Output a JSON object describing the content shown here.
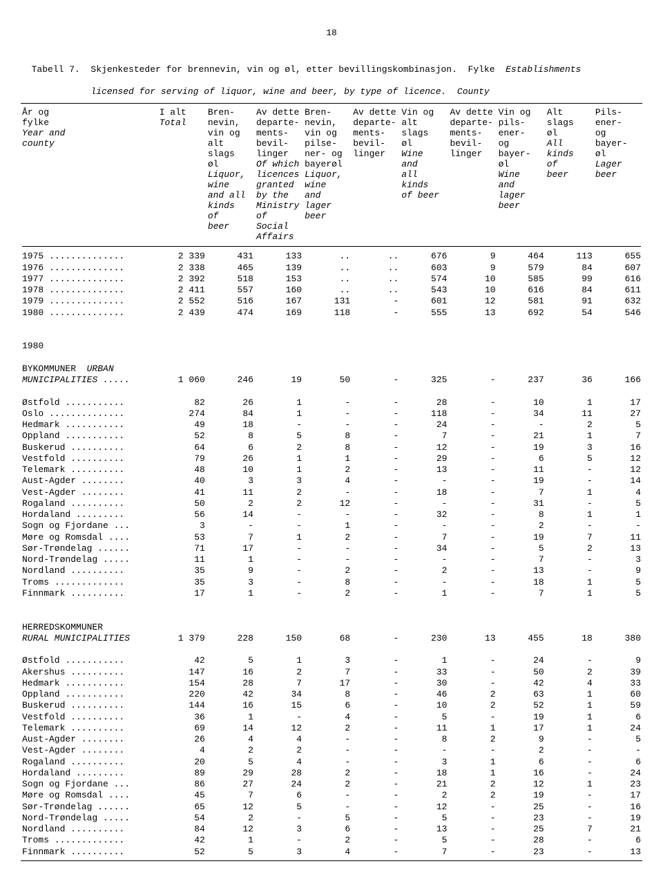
{
  "page_number": "18",
  "caption_line1_a": "Tabell 7.  Skjenkesteder for brennevin, vin og øl, etter bevillingskombinasjon.  Fylke  ",
  "caption_line1_b": "Establishments",
  "caption_line2_a": "           ",
  "caption_line2_b": "licensed for serving of liquor, wine and beer, by type of licence.  County",
  "headers": {
    "c0_a": "År og\nfylke",
    "c0_b": "Year and\ncounty",
    "c1_a": "I alt",
    "c1_b": "Total",
    "c2_a": "Bren-\nnevin,\nvin og\nalt\nslags\nøl",
    "c2_b": "Liquor,\nwine\nand all\nkinds\nof\nbeer",
    "c3_a": "Av dette\ndeparte-\nments-\nbevil-\nlinger",
    "c3_b": "Of which\nlicences\ngranted\nby the\nMinistry\nof Social\nAffairs",
    "c4_a": "Bren-\nnevin,\nvin og\npilse-\nner- og\nbayerøl",
    "c4_b": "Liquor,\nwine\nand\nlager\nbeer",
    "c5_a": "Av dette\ndeparte-\nments-\nbevil-\nlinger",
    "c5_b": "",
    "c6_a": "Vin og\nalt\nslags\nøl",
    "c6_b": "Wine\nand\nall\nkinds\nof beer",
    "c7_a": "Av dette\ndeparte-\nments-\nbevil-\nlinger",
    "c7_b": "",
    "c8_a": "Vin og\npils-\nener-\nog\nbayer-\nøl",
    "c8_b": "Wine\nand\nlager\nbeer",
    "c9_a": "Alt\nslags\nøl",
    "c9_b": "All\nkinds\nof\nbeer",
    "c10_a": "Pils-\nener-\nog\nbayer-\nøl",
    "c10_b": "Lager\nbeer"
  },
  "years": [
    {
      "label": "1975 ..............",
      "v": [
        "2 339",
        "431",
        "133",
        "..",
        "..",
        "676",
        "9",
        "464",
        "113",
        "655"
      ]
    },
    {
      "label": "1976 ..............",
      "v": [
        "2 338",
        "465",
        "139",
        "..",
        "..",
        "603",
        "9",
        "579",
        "84",
        "607"
      ]
    },
    {
      "label": "1977 ..............",
      "v": [
        "2 392",
        "518",
        "153",
        "..",
        "..",
        "574",
        "10",
        "585",
        "99",
        "616"
      ]
    },
    {
      "label": "1978 ..............",
      "v": [
        "2 411",
        "557",
        "160",
        "..",
        "..",
        "543",
        "10",
        "616",
        "84",
        "611"
      ]
    },
    {
      "label": "1979 ..............",
      "v": [
        "2 552",
        "516",
        "167",
        "131",
        "-",
        "601",
        "12",
        "581",
        "91",
        "632"
      ]
    },
    {
      "label": "1980 ..............",
      "v": [
        "2 439",
        "474",
        "169",
        "118",
        "-",
        "555",
        "13",
        "692",
        "54",
        "546"
      ]
    }
  ],
  "section_1980": "1980",
  "urban_header_a": "BYKOMMUNER  ",
  "urban_header_b": "URBAN",
  "urban_total": {
    "label_b": "MUNICIPALITIES .....",
    "v": [
      "1 060",
      "246",
      "19",
      "50",
      "-",
      "325",
      "-",
      "237",
      "36",
      "166"
    ]
  },
  "urban": [
    {
      "label": "Østfold ...........",
      "v": [
        "82",
        "26",
        "1",
        "-",
        "-",
        "28",
        "-",
        "10",
        "1",
        "17"
      ]
    },
    {
      "label": "Oslo ..............",
      "v": [
        "274",
        "84",
        "1",
        "-",
        "-",
        "118",
        "-",
        "34",
        "11",
        "27"
      ]
    },
    {
      "label": "Hedmark ...........",
      "v": [
        "49",
        "18",
        "-",
        "-",
        "-",
        "24",
        "-",
        "-",
        "2",
        "5"
      ]
    },
    {
      "label": "Oppland ...........",
      "v": [
        "52",
        "8",
        "5",
        "8",
        "-",
        "7",
        "-",
        "21",
        "1",
        "7"
      ]
    },
    {
      "label": "Buskerud ..........",
      "v": [
        "64",
        "6",
        "2",
        "8",
        "-",
        "12",
        "-",
        "19",
        "3",
        "16"
      ]
    },
    {
      "label": "Vestfold ..........",
      "v": [
        "79",
        "26",
        "1",
        "1",
        "-",
        "29",
        "-",
        "6",
        "5",
        "12"
      ]
    },
    {
      "label": "Telemark ..........",
      "v": [
        "48",
        "10",
        "1",
        "2",
        "-",
        "13",
        "-",
        "11",
        "-",
        "12"
      ]
    },
    {
      "label": "Aust-Agder ........",
      "v": [
        "40",
        "3",
        "3",
        "4",
        "-",
        "-",
        "-",
        "19",
        "-",
        "14"
      ]
    },
    {
      "label": "Vest-Agder ........",
      "v": [
        "41",
        "11",
        "2",
        "-",
        "-",
        "18",
        "-",
        "7",
        "1",
        "4"
      ]
    },
    {
      "label": "Rogaland ..........",
      "v": [
        "50",
        "2",
        "2",
        "12",
        "-",
        "-",
        "-",
        "31",
        "-",
        "5"
      ]
    },
    {
      "label": "Hordaland .........",
      "v": [
        "56",
        "14",
        "-",
        "-",
        "-",
        "32",
        "-",
        "8",
        "1",
        "1"
      ]
    },
    {
      "label": "Sogn og Fjordane ...",
      "v": [
        "3",
        "-",
        "-",
        "1",
        "-",
        "-",
        "-",
        "2",
        "-",
        "-"
      ]
    },
    {
      "label": "Møre og Romsdal ....",
      "v": [
        "53",
        "7",
        "1",
        "2",
        "-",
        "7",
        "-",
        "19",
        "7",
        "11"
      ]
    },
    {
      "label": "Sør-Trøndelag ......",
      "v": [
        "71",
        "17",
        "-",
        "-",
        "-",
        "34",
        "-",
        "5",
        "2",
        "13"
      ]
    },
    {
      "label": "Nord-Trøndelag .....",
      "v": [
        "11",
        "1",
        "-",
        "-",
        "-",
        "-",
        "-",
        "7",
        "-",
        "3"
      ]
    },
    {
      "label": "Nordland ..........",
      "v": [
        "35",
        "9",
        "-",
        "2",
        "-",
        "2",
        "-",
        "13",
        "-",
        "9"
      ]
    },
    {
      "label": "Troms .............",
      "v": [
        "35",
        "3",
        "-",
        "8",
        "-",
        "-",
        "-",
        "18",
        "1",
        "5"
      ]
    },
    {
      "label": "Finnmark ..........",
      "v": [
        "17",
        "1",
        "-",
        "2",
        "-",
        "1",
        "-",
        "7",
        "1",
        "5"
      ]
    }
  ],
  "rural_header_a": "HERREDSKOMMUNER",
  "rural_total": {
    "label_b": "RURAL MUNICIPALITIES",
    "v": [
      "1 379",
      "228",
      "150",
      "68",
      "-",
      "230",
      "13",
      "455",
      "18",
      "380"
    ]
  },
  "rural": [
    {
      "label": "Østfold ...........",
      "v": [
        "42",
        "5",
        "1",
        "3",
        "-",
        "1",
        "-",
        "24",
        "-",
        "9"
      ]
    },
    {
      "label": "Akershus ..........",
      "v": [
        "147",
        "16",
        "2",
        "7",
        "-",
        "33",
        "-",
        "50",
        "2",
        "39"
      ]
    },
    {
      "label": "Hedmark ...........",
      "v": [
        "154",
        "28",
        "7",
        "17",
        "-",
        "30",
        "-",
        "42",
        "4",
        "33"
      ]
    },
    {
      "label": "Oppland ...........",
      "v": [
        "220",
        "42",
        "34",
        "8",
        "-",
        "46",
        "2",
        "63",
        "1",
        "60"
      ]
    },
    {
      "label": "Buskerud ..........",
      "v": [
        "144",
        "16",
        "15",
        "6",
        "-",
        "10",
        "2",
        "52",
        "1",
        "59"
      ]
    },
    {
      "label": "Vestfold ..........",
      "v": [
        "36",
        "1",
        "-",
        "4",
        "-",
        "5",
        "-",
        "19",
        "1",
        "6"
      ]
    },
    {
      "label": "Telemark ..........",
      "v": [
        "69",
        "14",
        "12",
        "2",
        "-",
        "11",
        "1",
        "17",
        "1",
        "24"
      ]
    },
    {
      "label": "Aust-Agder ........",
      "v": [
        "26",
        "4",
        "4",
        "-",
        "-",
        "8",
        "2",
        "9",
        "-",
        "5"
      ]
    },
    {
      "label": "Vest-Agder ........",
      "v": [
        "4",
        "2",
        "2",
        "-",
        "-",
        "-",
        "-",
        "2",
        "-",
        "-"
      ]
    },
    {
      "label": "Rogaland ..........",
      "v": [
        "20",
        "5",
        "4",
        "-",
        "-",
        "3",
        "1",
        "6",
        "-",
        "6"
      ]
    },
    {
      "label": "Hordaland .........",
      "v": [
        "89",
        "29",
        "28",
        "2",
        "-",
        "18",
        "1",
        "16",
        "-",
        "24"
      ]
    },
    {
      "label": "Sogn og Fjordane ...",
      "v": [
        "86",
        "27",
        "24",
        "2",
        "-",
        "21",
        "2",
        "12",
        "1",
        "23"
      ]
    },
    {
      "label": "Møre og Romsdal ....",
      "v": [
        "45",
        "7",
        "6",
        "-",
        "-",
        "2",
        "2",
        "19",
        "-",
        "17"
      ]
    },
    {
      "label": "Sør-Trøndelag ......",
      "v": [
        "65",
        "12",
        "5",
        "-",
        "-",
        "12",
        "-",
        "25",
        "-",
        "16"
      ]
    },
    {
      "label": "Nord-Trøndelag .....",
      "v": [
        "54",
        "2",
        "-",
        "5",
        "-",
        "5",
        "-",
        "23",
        "-",
        "19"
      ]
    },
    {
      "label": "Nordland ..........",
      "v": [
        "84",
        "12",
        "3",
        "6",
        "-",
        "13",
        "-",
        "25",
        "7",
        "21"
      ]
    },
    {
      "label": "Troms .............",
      "v": [
        "42",
        "1",
        "-",
        "2",
        "-",
        "5",
        "-",
        "28",
        "-",
        "6"
      ]
    },
    {
      "label": "Finnmark ..........",
      "v": [
        "52",
        "5",
        "3",
        "4",
        "-",
        "7",
        "-",
        "23",
        "-",
        "13"
      ]
    }
  ]
}
